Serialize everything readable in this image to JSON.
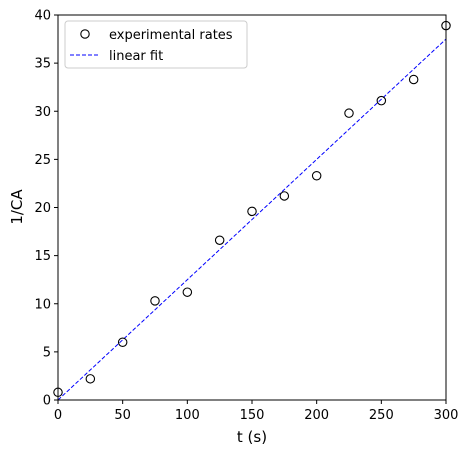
{
  "chart_data": {
    "type": "scatter",
    "xlabel": "t (s)",
    "ylabel": "1/CA",
    "xlim": [
      0,
      300
    ],
    "ylim": [
      0,
      40
    ],
    "xticks": [
      0,
      50,
      100,
      150,
      200,
      250,
      300
    ],
    "yticks": [
      0,
      5,
      10,
      15,
      20,
      25,
      30,
      35,
      40
    ],
    "grid": false,
    "legend_position": "top-left",
    "series": [
      {
        "name": "experimental rates",
        "kind": "scatter",
        "marker": "open-circle",
        "color": "#000000",
        "x": [
          0,
          25,
          50,
          75,
          100,
          125,
          150,
          175,
          200,
          225,
          250,
          275,
          300
        ],
        "y": [
          0.8,
          2.2,
          6.0,
          10.3,
          11.2,
          16.6,
          19.6,
          21.2,
          23.3,
          29.8,
          31.1,
          33.3,
          38.9
        ]
      },
      {
        "name": "linear fit",
        "kind": "line",
        "style": "dashed",
        "color": "#0000ff",
        "x": [
          0,
          300
        ],
        "y": [
          0,
          37.5
        ]
      }
    ]
  }
}
